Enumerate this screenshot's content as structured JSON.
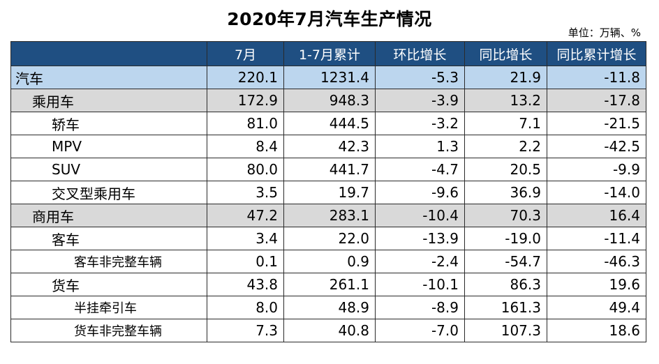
{
  "title": "2020年7月汽车生产情况",
  "unit": "单位：万辆、%",
  "colors": {
    "header_bg": "#1f4f82",
    "total_row_bg": "#bcd6ee",
    "subtotal_row_bg": "#d9d9d9"
  },
  "headers": [
    "",
    "7月",
    "1-7月累计",
    "环比增长",
    "同比增长",
    "同比累计增长"
  ],
  "rows": [
    {
      "name": "汽车",
      "level": 0,
      "values": [
        "220.1",
        "1231.4",
        "-5.3",
        "21.9",
        "-11.8"
      ]
    },
    {
      "name": "乘用车",
      "level": 1,
      "values": [
        "172.9",
        "948.3",
        "-3.9",
        "13.2",
        "-17.8"
      ]
    },
    {
      "name": "轿车",
      "level": 2,
      "values": [
        "81.0",
        "444.5",
        "-3.2",
        "7.1",
        "-21.5"
      ]
    },
    {
      "name": "MPV",
      "level": 2,
      "values": [
        "8.4",
        "42.3",
        "1.3",
        "2.2",
        "-42.5"
      ]
    },
    {
      "name": "SUV",
      "level": 2,
      "values": [
        "80.0",
        "441.7",
        "-4.7",
        "20.5",
        "-9.9"
      ]
    },
    {
      "name": "交叉型乘用车",
      "level": 2,
      "values": [
        "3.5",
        "19.7",
        "-9.6",
        "36.9",
        "-14.0"
      ]
    },
    {
      "name": "商用车",
      "level": 1,
      "values": [
        "47.2",
        "283.1",
        "-10.4",
        "70.3",
        "16.4"
      ]
    },
    {
      "name": "客车",
      "level": 2,
      "values": [
        "3.4",
        "22.0",
        "-13.9",
        "-19.0",
        "-11.4"
      ]
    },
    {
      "name": "客车非完整车辆",
      "level": 3,
      "values": [
        "0.1",
        "0.9",
        "-2.4",
        "-54.7",
        "-46.3"
      ]
    },
    {
      "name": "货车",
      "level": 2,
      "values": [
        "43.8",
        "261.1",
        "-10.1",
        "86.3",
        "19.6"
      ]
    },
    {
      "name": "半挂牵引车",
      "level": 3,
      "values": [
        "8.0",
        "48.9",
        "-8.9",
        "161.3",
        "49.4"
      ]
    },
    {
      "name": "货车非完整车辆",
      "level": 3,
      "values": [
        "7.3",
        "40.8",
        "-7.0",
        "107.3",
        "18.6"
      ]
    }
  ]
}
